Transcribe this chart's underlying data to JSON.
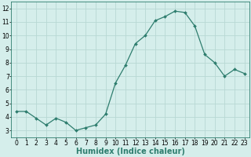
{
  "x": [
    0,
    1,
    2,
    3,
    4,
    5,
    6,
    7,
    8,
    9,
    10,
    11,
    12,
    13,
    14,
    15,
    16,
    17,
    18,
    19,
    20,
    21,
    22,
    23
  ],
  "y": [
    4.4,
    4.4,
    3.9,
    3.4,
    3.9,
    3.6,
    3.0,
    3.2,
    3.4,
    4.2,
    6.5,
    7.8,
    9.4,
    10.0,
    11.1,
    11.4,
    11.8,
    11.7,
    10.7,
    8.6,
    8.0,
    7.0,
    7.5,
    7.2
  ],
  "line_color": "#2e7d6e",
  "marker": "D",
  "marker_size": 2.0,
  "linewidth": 0.9,
  "bg_color": "#d5eeeb",
  "grid_color": "#b8d8d4",
  "xlabel": "Humidex (Indice chaleur)",
  "xlabel_fontsize": 7,
  "yticks": [
    3,
    4,
    5,
    6,
    7,
    8,
    9,
    10,
    11,
    12
  ],
  "xticks": [
    0,
    1,
    2,
    3,
    4,
    5,
    6,
    7,
    8,
    9,
    10,
    11,
    12,
    13,
    14,
    15,
    16,
    17,
    18,
    19,
    20,
    21,
    22,
    23
  ],
  "ylim": [
    2.5,
    12.5
  ],
  "xlim": [
    -0.5,
    23.5
  ],
  "tick_fontsize": 5.5
}
